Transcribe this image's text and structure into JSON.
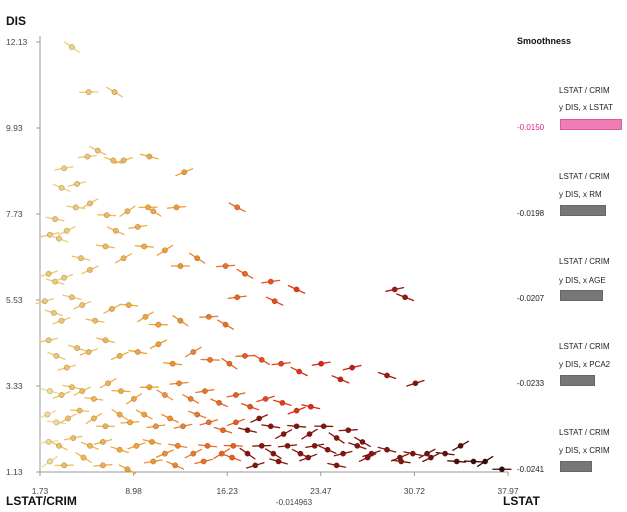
{
  "chart_data": {
    "type": "scatter",
    "xlabel": "LSTAT",
    "ylabel": "DIS",
    "xlabel_left": "LSTAT/CRIM",
    "x_mid_value": "-0.014963",
    "x_ticks": [
      "1.73",
      "8.98",
      "16.23",
      "23.47",
      "30.72",
      "37.97"
    ],
    "y_ticks": [
      "12.13",
      "9.93",
      "7.73",
      "5.53",
      "3.33",
      "1.13"
    ],
    "xlim": [
      1.73,
      37.97
    ],
    "ylim": [
      1.13,
      12.13
    ],
    "grid": false,
    "points": [
      [
        4.2,
        12.0
      ],
      [
        5.5,
        10.85
      ],
      [
        7.5,
        10.85
      ],
      [
        5.4,
        9.2
      ],
      [
        6.2,
        9.35
      ],
      [
        3.6,
        8.9
      ],
      [
        3.4,
        8.4
      ],
      [
        4.6,
        8.5
      ],
      [
        7.4,
        9.1
      ],
      [
        8.2,
        9.1
      ],
      [
        10.2,
        9.2
      ],
      [
        12.9,
        8.8
      ],
      [
        2.9,
        7.6
      ],
      [
        3.8,
        7.3
      ],
      [
        4.5,
        7.9
      ],
      [
        5.6,
        8.0
      ],
      [
        6.9,
        7.7
      ],
      [
        8.5,
        7.8
      ],
      [
        10.1,
        7.9
      ],
      [
        10.5,
        7.8
      ],
      [
        12.3,
        7.9
      ],
      [
        17.0,
        7.9
      ],
      [
        9.3,
        7.4
      ],
      [
        7.6,
        7.3
      ],
      [
        2.5,
        7.2
      ],
      [
        3.2,
        7.1
      ],
      [
        2.4,
        6.2
      ],
      [
        2.9,
        6.0
      ],
      [
        3.6,
        6.1
      ],
      [
        4.9,
        6.6
      ],
      [
        5.6,
        6.3
      ],
      [
        6.8,
        6.9
      ],
      [
        8.2,
        6.6
      ],
      [
        9.8,
        6.9
      ],
      [
        11.4,
        6.8
      ],
      [
        12.6,
        6.4
      ],
      [
        13.9,
        6.6
      ],
      [
        16.1,
        6.4
      ],
      [
        17.6,
        6.2
      ],
      [
        19.6,
        6.0
      ],
      [
        21.6,
        5.8
      ],
      [
        29.2,
        5.8
      ],
      [
        30.0,
        5.6
      ],
      [
        2.1,
        5.5
      ],
      [
        2.8,
        5.2
      ],
      [
        3.4,
        5.0
      ],
      [
        4.2,
        5.6
      ],
      [
        5.0,
        5.4
      ],
      [
        6.0,
        5.0
      ],
      [
        7.3,
        5.3
      ],
      [
        8.6,
        5.4
      ],
      [
        9.9,
        5.1
      ],
      [
        10.9,
        4.9
      ],
      [
        12.6,
        5.0
      ],
      [
        14.8,
        5.1
      ],
      [
        16.1,
        4.9
      ],
      [
        17.0,
        5.6
      ],
      [
        19.9,
        5.5
      ],
      [
        2.4,
        4.5
      ],
      [
        3.0,
        4.1
      ],
      [
        3.8,
        3.8
      ],
      [
        4.6,
        4.3
      ],
      [
        5.5,
        4.2
      ],
      [
        6.8,
        4.5
      ],
      [
        7.9,
        4.1
      ],
      [
        9.3,
        4.2
      ],
      [
        10.9,
        4.4
      ],
      [
        12.0,
        3.9
      ],
      [
        13.6,
        4.2
      ],
      [
        14.9,
        4.0
      ],
      [
        16.4,
        3.9
      ],
      [
        17.6,
        4.1
      ],
      [
        18.9,
        4.0
      ],
      [
        20.4,
        3.9
      ],
      [
        21.8,
        3.7
      ],
      [
        23.5,
        3.9
      ],
      [
        25.0,
        3.5
      ],
      [
        25.9,
        3.8
      ],
      [
        28.6,
        3.6
      ],
      [
        30.8,
        3.4
      ],
      [
        2.5,
        3.2
      ],
      [
        3.4,
        3.1
      ],
      [
        4.2,
        3.3
      ],
      [
        5.0,
        3.2
      ],
      [
        5.9,
        3.0
      ],
      [
        7.0,
        3.4
      ],
      [
        8.0,
        3.2
      ],
      [
        9.0,
        3.0
      ],
      [
        10.2,
        3.3
      ],
      [
        11.4,
        3.1
      ],
      [
        12.5,
        3.4
      ],
      [
        13.4,
        3.0
      ],
      [
        14.5,
        3.2
      ],
      [
        15.6,
        2.9
      ],
      [
        16.9,
        3.1
      ],
      [
        18.0,
        2.8
      ],
      [
        19.2,
        3.0
      ],
      [
        20.5,
        2.9
      ],
      [
        21.6,
        2.7
      ],
      [
        22.7,
        2.8
      ],
      [
        2.3,
        2.6
      ],
      [
        3.0,
        2.4
      ],
      [
        3.9,
        2.5
      ],
      [
        4.8,
        2.7
      ],
      [
        5.9,
        2.5
      ],
      [
        6.8,
        2.3
      ],
      [
        7.9,
        2.6
      ],
      [
        8.7,
        2.4
      ],
      [
        9.8,
        2.6
      ],
      [
        10.7,
        2.3
      ],
      [
        11.8,
        2.5
      ],
      [
        12.8,
        2.3
      ],
      [
        13.9,
        2.6
      ],
      [
        14.8,
        2.4
      ],
      [
        15.9,
        2.2
      ],
      [
        16.9,
        2.4
      ],
      [
        17.8,
        2.2
      ],
      [
        18.7,
        2.5
      ],
      [
        19.6,
        2.3
      ],
      [
        20.6,
        2.1
      ],
      [
        21.6,
        2.3
      ],
      [
        22.6,
        2.1
      ],
      [
        23.7,
        2.3
      ],
      [
        24.7,
        2.0
      ],
      [
        25.6,
        2.2
      ],
      [
        26.7,
        1.9
      ],
      [
        2.4,
        1.9
      ],
      [
        3.2,
        1.8
      ],
      [
        4.3,
        2.0
      ],
      [
        5.6,
        1.8
      ],
      [
        6.6,
        1.9
      ],
      [
        7.9,
        1.7
      ],
      [
        9.2,
        1.8
      ],
      [
        10.4,
        1.9
      ],
      [
        11.4,
        1.6
      ],
      [
        12.4,
        1.8
      ],
      [
        13.6,
        1.6
      ],
      [
        14.7,
        1.8
      ],
      [
        15.8,
        1.6
      ],
      [
        16.7,
        1.8
      ],
      [
        17.8,
        1.6
      ],
      [
        18.9,
        1.8
      ],
      [
        19.8,
        1.6
      ],
      [
        20.9,
        1.8
      ],
      [
        21.9,
        1.6
      ],
      [
        23.0,
        1.8
      ],
      [
        24.0,
        1.7
      ],
      [
        25.2,
        1.6
      ],
      [
        26.3,
        1.8
      ],
      [
        27.4,
        1.6
      ],
      [
        28.6,
        1.7
      ],
      [
        29.6,
        1.5
      ],
      [
        30.6,
        1.6
      ],
      [
        32.0,
        1.5
      ],
      [
        33.1,
        1.6
      ],
      [
        34.3,
        1.8
      ],
      [
        35.3,
        1.4
      ],
      [
        2.5,
        1.4
      ],
      [
        3.6,
        1.3
      ],
      [
        5.1,
        1.5
      ],
      [
        6.6,
        1.3
      ],
      [
        8.5,
        1.2
      ],
      [
        10.5,
        1.4
      ],
      [
        12.2,
        1.3
      ],
      [
        14.4,
        1.4
      ],
      [
        16.6,
        1.5
      ],
      [
        18.4,
        1.3
      ],
      [
        20.2,
        1.4
      ],
      [
        22.5,
        1.5
      ],
      [
        24.7,
        1.3
      ],
      [
        27.1,
        1.5
      ],
      [
        29.7,
        1.4
      ],
      [
        31.7,
        1.6
      ],
      [
        34.0,
        1.4
      ],
      [
        36.2,
        1.4
      ],
      [
        37.5,
        1.2
      ]
    ]
  },
  "side_panel": {
    "title": "Smoothness",
    "selected_index": 0,
    "items": [
      {
        "line1": "LSTAT / CRIM",
        "line2": "y DIS, x LSTAT",
        "value": "-0.0150",
        "score": 0.015
      },
      {
        "line1": "LSTAT / CRIM",
        "line2": "y DIS, x RM",
        "value": "-0.0198",
        "score": 0.0198
      },
      {
        "line1": "LSTAT / CRIM",
        "line2": "y DIS, x AGE",
        "value": "-0.0207",
        "score": 0.0207
      },
      {
        "line1": "LSTAT / CRIM",
        "line2": "y DIS, x PCA2",
        "value": "-0.0233",
        "score": 0.0233
      },
      {
        "line1": "LSTAT / CRIM",
        "line2": "y DIS, x CRIM",
        "value": "-0.0241",
        "score": 0.0241
      }
    ]
  },
  "colors": {
    "low": "#eee6a0",
    "mid1": "#f2a030",
    "mid2": "#e02010",
    "high": "#3a0a0a",
    "selected_bar": "#f07cb4",
    "bar": "#777777"
  }
}
